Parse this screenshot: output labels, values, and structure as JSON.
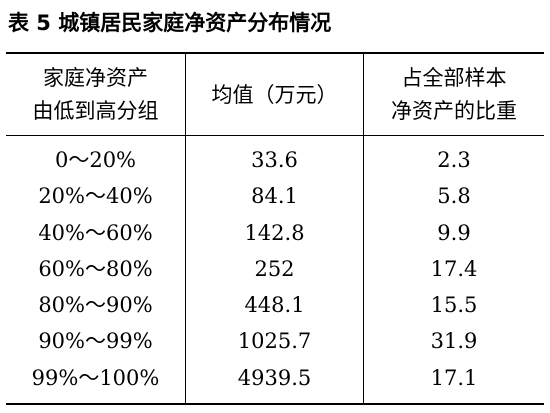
{
  "table": {
    "title": "表 5 城镇居民家庭净资产分布情况",
    "headers": {
      "col1": [
        "家庭净资产",
        "由低到高分组"
      ],
      "col2": [
        "均值（万元）"
      ],
      "col3": [
        "占全部样本",
        "净资产的比重"
      ]
    },
    "rows": [
      {
        "group": "0～20%",
        "mean": "33.6",
        "share": "2.3"
      },
      {
        "group": "20%～40%",
        "mean": "84.1",
        "share": "5.8"
      },
      {
        "group": "40%～60%",
        "mean": "142.8",
        "share": "9.9"
      },
      {
        "group": "60%～80%",
        "mean": "252",
        "share": "17.4"
      },
      {
        "group": "80%～90%",
        "mean": "448.1",
        "share": "15.5"
      },
      {
        "group": "90%～99%",
        "mean": "1025.7",
        "share": "31.9"
      },
      {
        "group": "99%～100%",
        "mean": "4939.5",
        "share": "17.1"
      }
    ]
  }
}
